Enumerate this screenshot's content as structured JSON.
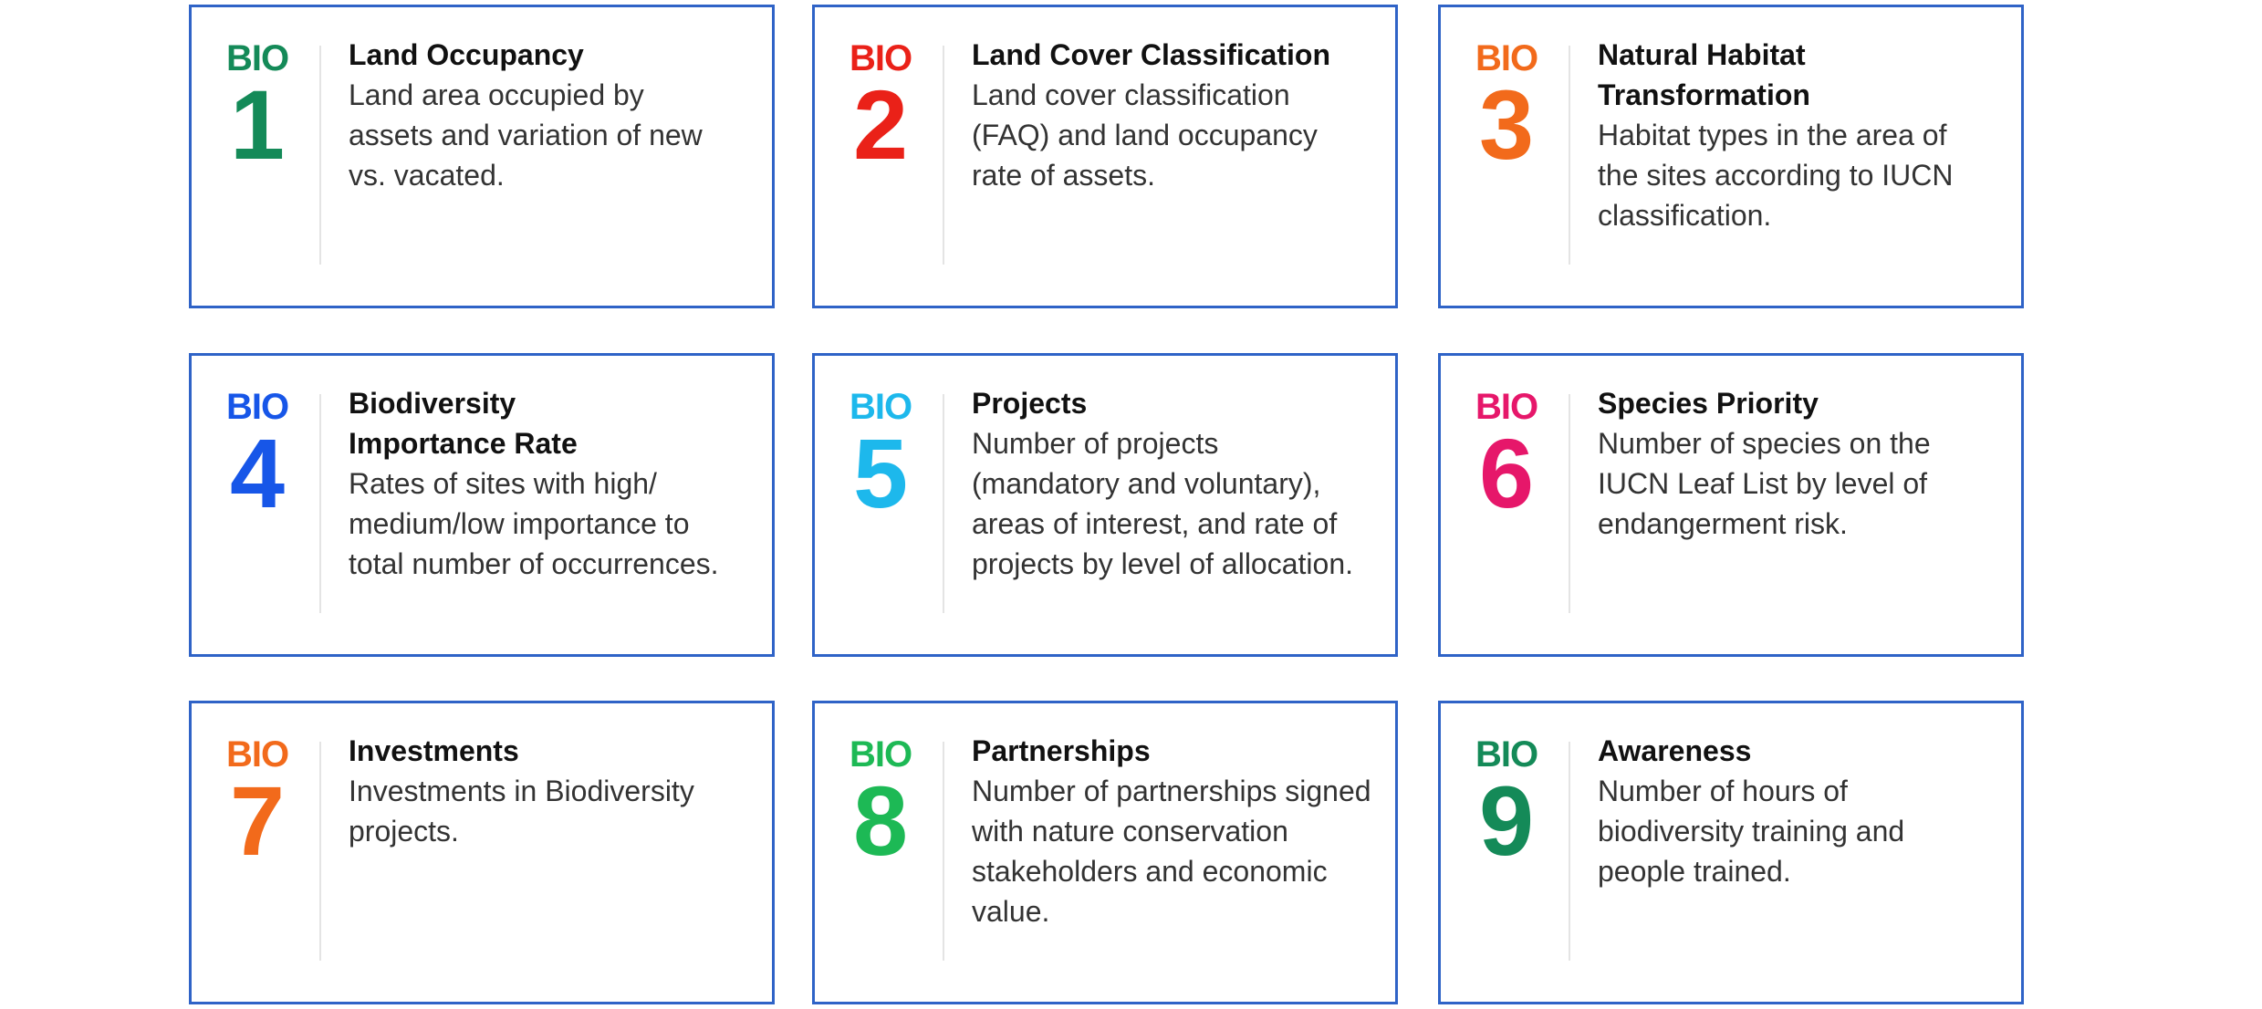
{
  "colors": {
    "card_border": "#2f63c7",
    "bio1": "#148a58",
    "bio2": "#ea2118",
    "bio3": "#f26a1b",
    "bio4": "#1756e8",
    "bio5": "#1db8ec",
    "bio6": "#e6176a",
    "bio7": "#f26a1b",
    "bio8": "#1db955",
    "bio9": "#148a58"
  },
  "cards": [
    {
      "prefix": "BIO",
      "number": "1",
      "title": "Land Occupancy",
      "desc": "Land area occupied by assets and variation of new vs. vacated."
    },
    {
      "prefix": "BIO",
      "number": "2",
      "title": "Land Cover Classification",
      "desc": "Land cover classification (FAQ) and land occupancy rate of assets."
    },
    {
      "prefix": "BIO",
      "number": "3",
      "title": "Natural Habitat Transformation",
      "desc": "Habitat types in the area of the sites according to IUCN classification."
    },
    {
      "prefix": "BIO",
      "number": "4",
      "title": "Biodiversity Importance Rate",
      "desc": "Rates of sites with high/ medium/low importance to total number of occurrences."
    },
    {
      "prefix": "BIO",
      "number": "5",
      "title": "Projects",
      "desc": "Number of projects (mandatory and voluntary), areas of interest, and rate of projects by level of allocation."
    },
    {
      "prefix": "BIO",
      "number": "6",
      "title": "Species Priority",
      "desc": "Number of species on the IUCN Leaf List by level of endangerment risk."
    },
    {
      "prefix": "BIO",
      "number": "7",
      "title": "Investments",
      "desc": "Investments in Biodiversity projects."
    },
    {
      "prefix": "BIO",
      "number": "8",
      "title": "Partnerships",
      "desc": "Number of partnerships signed with nature conservation stakeholders and economic value."
    },
    {
      "prefix": "BIO",
      "number": "9",
      "title": "Awareness",
      "desc": "Number of hours of biodiversity training and people trained."
    }
  ]
}
